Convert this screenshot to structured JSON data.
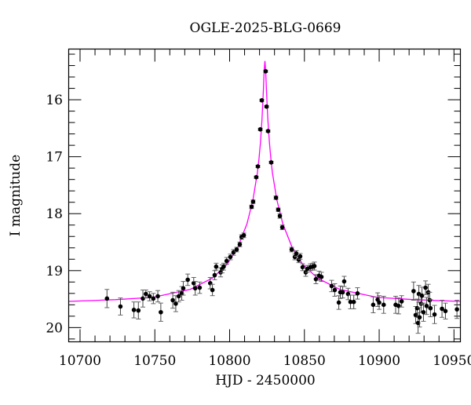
{
  "chart_data": {
    "type": "scatter",
    "title": "OGLE-2025-BLG-0669",
    "xlabel": "HJD - 2450000",
    "ylabel": "I magnitude",
    "xlim": [
      10692.4,
      10954.3
    ],
    "ylim": [
      20.25,
      15.11
    ],
    "y_inverted": true,
    "x_ticks": [
      10700,
      10750,
      10800,
      10850,
      10900,
      10950
    ],
    "x_tick_labels": [
      "10700",
      "10750",
      "10800",
      "10850",
      "10900",
      "10950"
    ],
    "y_ticks": [
      16,
      17,
      18,
      19,
      20
    ],
    "y_tick_labels": [
      "16",
      "17",
      "18",
      "19",
      "20"
    ],
    "grid": false,
    "colors": {
      "data": "#000000",
      "model": "#ff00ff"
    },
    "series": [
      {
        "kind": "points-with-errorbars",
        "points": [
          [
            10718,
            19.49,
            0.16
          ],
          [
            10727,
            19.63,
            0.15
          ],
          [
            10736,
            19.69,
            0.14
          ],
          [
            10739,
            19.7,
            0.15
          ],
          [
            10742,
            19.49,
            0.15
          ],
          [
            10744,
            19.41,
            0.07
          ],
          [
            10746.5,
            19.45,
            0.08
          ],
          [
            10749,
            19.49,
            0.09
          ],
          [
            10752,
            19.45,
            0.1
          ],
          [
            10754,
            19.73,
            0.16
          ],
          [
            10762,
            19.52,
            0.14
          ],
          [
            10764,
            19.58,
            0.14
          ],
          [
            10766,
            19.45,
            0.1
          ],
          [
            10768,
            19.4,
            0.12
          ],
          [
            10769,
            19.31,
            0.12
          ],
          [
            10772,
            19.16,
            0.1
          ],
          [
            10776,
            19.22,
            0.1
          ],
          [
            10777,
            19.31,
            0.12
          ],
          [
            10780,
            19.3,
            0.1
          ],
          [
            10787,
            19.22,
            0.1
          ],
          [
            10788.5,
            19.34,
            0.1
          ],
          [
            10790,
            19.08,
            0.08
          ],
          [
            10791,
            18.93,
            0.06
          ],
          [
            10794,
            19.03,
            0.08
          ],
          [
            10795,
            18.97,
            0.07
          ],
          [
            10796,
            18.93,
            0.06
          ],
          [
            10798,
            18.83,
            0.06
          ],
          [
            10800.5,
            18.76,
            0.05
          ],
          [
            10802.6,
            18.68,
            0.05
          ],
          [
            10804.7,
            18.63,
            0.04
          ],
          [
            10806.8,
            18.54,
            0.04
          ],
          [
            10808,
            18.41,
            0.04
          ],
          [
            10809.5,
            18.38,
            0.04
          ],
          [
            10814.7,
            17.88,
            0.03
          ],
          [
            10815.7,
            17.79,
            0.03
          ],
          [
            10817.8,
            17.36,
            0.02
          ],
          [
            10818.9,
            17.17,
            0.02
          ],
          [
            10820.5,
            16.52,
            0.02
          ],
          [
            10821.5,
            16.01,
            0.02
          ],
          [
            10824.1,
            15.5,
            0.02
          ],
          [
            10824.7,
            16.12,
            0.02
          ],
          [
            10825.7,
            16.55,
            0.02
          ],
          [
            10827.8,
            17.1,
            0.02
          ],
          [
            10831,
            17.72,
            0.03
          ],
          [
            10832.5,
            17.93,
            0.03
          ],
          [
            10833.6,
            18.04,
            0.04
          ],
          [
            10835.2,
            18.24,
            0.04
          ],
          [
            10841.5,
            18.63,
            0.04
          ],
          [
            10843.6,
            18.76,
            0.05
          ],
          [
            10844.6,
            18.7,
            0.05
          ],
          [
            10846.2,
            18.81,
            0.05
          ],
          [
            10847.2,
            18.75,
            0.05
          ],
          [
            10848.8,
            18.94,
            0.06
          ],
          [
            10850.9,
            19.03,
            0.07
          ],
          [
            10852,
            18.97,
            0.06
          ],
          [
            10854,
            18.94,
            0.06
          ],
          [
            10855.6,
            18.93,
            0.06
          ],
          [
            10856.7,
            18.92,
            0.07
          ],
          [
            10857.7,
            19.15,
            0.08
          ],
          [
            10859.8,
            19.09,
            0.08
          ],
          [
            10861.4,
            19.11,
            0.08
          ],
          [
            10868.2,
            19.27,
            0.1
          ],
          [
            10870.3,
            19.34,
            0.11
          ],
          [
            10873,
            19.56,
            0.12
          ],
          [
            10874,
            19.38,
            0.11
          ],
          [
            10875.6,
            19.38,
            0.1
          ],
          [
            10876.6,
            19.19,
            0.09
          ],
          [
            10879.2,
            19.41,
            0.1
          ],
          [
            10880.8,
            19.55,
            0.12
          ],
          [
            10883,
            19.55,
            0.12
          ],
          [
            10885.5,
            19.4,
            0.1
          ],
          [
            10896,
            19.6,
            0.14
          ],
          [
            10899,
            19.51,
            0.12
          ],
          [
            10900,
            19.56,
            0.12
          ],
          [
            10903,
            19.6,
            0.15
          ],
          [
            10911,
            19.6,
            0.15
          ],
          [
            10913,
            19.62,
            0.14
          ],
          [
            10915,
            19.54,
            0.1
          ],
          [
            10923,
            19.36,
            0.16
          ],
          [
            10924.4,
            19.78,
            0.15
          ],
          [
            10925.4,
            19.66,
            0.16
          ],
          [
            10926,
            19.92,
            0.18
          ],
          [
            10926.5,
            19.41,
            0.15
          ],
          [
            10927,
            19.82,
            0.17
          ],
          [
            10928,
            19.58,
            0.15
          ],
          [
            10928.6,
            19.44,
            0.15
          ],
          [
            10929.6,
            19.73,
            0.16
          ],
          [
            10931,
            19.3,
            0.12
          ],
          [
            10931.7,
            19.62,
            0.15
          ],
          [
            10932.8,
            19.38,
            0.14
          ],
          [
            10933.8,
            19.52,
            0.14
          ],
          [
            10934.3,
            19.66,
            0.15
          ],
          [
            10937,
            19.77,
            0.16
          ],
          [
            10942,
            19.67,
            0.15
          ],
          [
            10944.3,
            19.71,
            0.14
          ],
          [
            10952,
            19.68,
            0.16
          ]
        ]
      },
      {
        "kind": "model-curve",
        "t": [
          10692,
          10723.6,
          10748.6,
          10773.6,
          10788.6,
          10798.6,
          10805.6,
          10811.6,
          10815.6,
          10818.6,
          10819.6,
          10820.6,
          10821.6,
          10822.1,
          10822.6,
          10823.1,
          10823.6,
          10824.1,
          10824.6,
          10825.1,
          10825.6,
          10826.6,
          10827.6,
          10828.6,
          10831.6,
          10835.6,
          10841.6,
          10848.6,
          10858.6,
          10873.6,
          10898.6,
          10923.6,
          10954
        ],
        "mag": [
          19.54,
          19.51,
          19.47,
          19.33,
          19.13,
          18.88,
          18.58,
          18.18,
          17.76,
          17.28,
          17.04,
          16.75,
          16.36,
          16.1,
          15.81,
          15.49,
          15.32,
          15.49,
          15.81,
          16.1,
          16.36,
          16.75,
          17.04,
          17.28,
          17.76,
          18.18,
          18.58,
          18.88,
          19.13,
          19.33,
          19.47,
          19.51,
          19.54
        ]
      }
    ]
  }
}
